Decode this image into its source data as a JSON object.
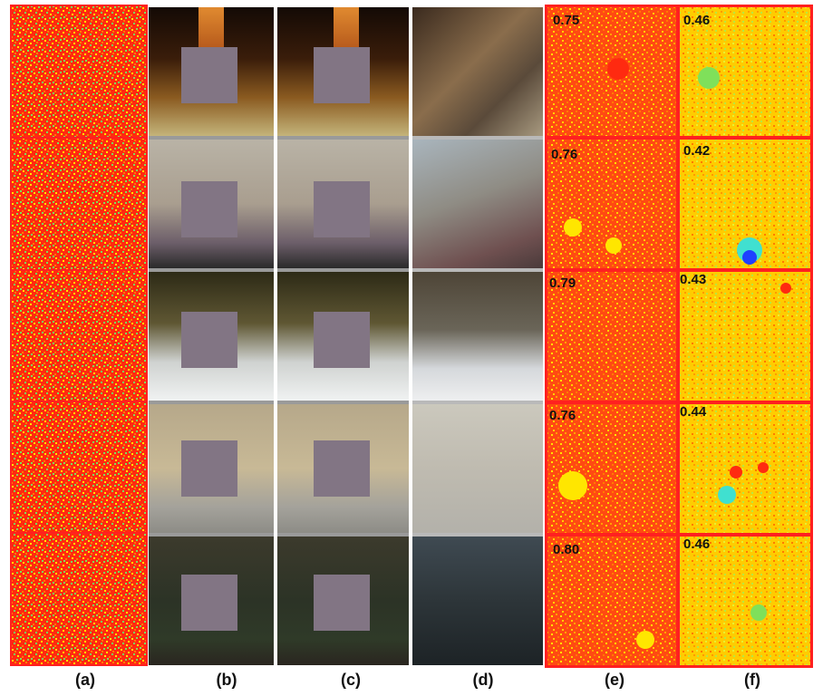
{
  "figure": {
    "column_labels": [
      "(a)",
      "(b)",
      "(c)",
      "(d)",
      "(e)",
      "(f)"
    ],
    "rows": 5,
    "scores_e": [
      "0.75",
      "0.76",
      "0.79",
      "0.76",
      "0.80"
    ],
    "scores_f": [
      "0.46",
      "0.42",
      "0.43",
      "0.44",
      "0.46"
    ]
  },
  "colors": {
    "heat_red": "#ff2a10",
    "heat_orange": "#ff7a00",
    "heat_yellow": "#ffe600",
    "heat_green": "#7fe05a",
    "heat_cyan": "#40e0d0",
    "heat_blue": "#1e40ff",
    "mask_gray": "#827584",
    "divider": "#b9b9b9"
  },
  "panels": {
    "a": "random-noise",
    "b": "masked-input",
    "c": "masked-input",
    "d": "blurry-reconstruction",
    "e": "heatmap",
    "f": "heatmap"
  }
}
